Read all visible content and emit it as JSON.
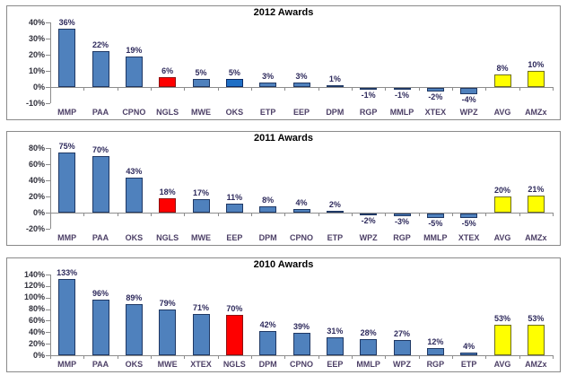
{
  "page": {
    "background": "#ffffff"
  },
  "colors": {
    "blue": {
      "fill": "#4f81bd",
      "border": "#1f3864"
    },
    "brightblue": {
      "fill": "#1f6fc5",
      "border": "#0b2a66"
    },
    "red": {
      "fill": "#fe0000",
      "border": "#8e1010"
    },
    "yellow": {
      "fill": "#ffff00",
      "border": "#6f6f1f"
    },
    "axis": "#8c8c8c",
    "value_label": "#2e2a5c",
    "category_label": "#4c3f66",
    "tick_label": "#2f2f3a",
    "title": "#000000",
    "panel_border": "#8a8a8a"
  },
  "chart_data": [
    {
      "type": "bar",
      "title": "2012 Awards",
      "ylim": [
        -10,
        40
      ],
      "yticks": [
        40,
        30,
        20,
        10,
        0,
        -10
      ],
      "ytick_labels": [
        "40%",
        "30%",
        "20%",
        "10%",
        "0%",
        "-10%"
      ],
      "grid": false,
      "legend": false,
      "categories": [
        "MMP",
        "PAA",
        "CPNO",
        "NGLS",
        "MWE",
        "OKS",
        "ETP",
        "EEP",
        "DPM",
        "RGP",
        "MMLP",
        "XTEX",
        "WPZ",
        "AVG",
        "AMZx"
      ],
      "values": [
        36,
        22,
        19,
        6,
        5,
        5,
        3,
        3,
        1,
        -1,
        -1,
        -2,
        -4,
        8,
        10
      ],
      "value_labels": [
        "36%",
        "22%",
        "19%",
        "6%",
        "5%",
        "5%",
        "3%",
        "3%",
        "1%",
        "-1%",
        "-1%",
        "-2%",
        "-4%",
        "8%",
        "10%"
      ],
      "bar_colors": [
        "blue",
        "blue",
        "blue",
        "red",
        "blue",
        "brightblue",
        "blue",
        "blue",
        "blue",
        "blue",
        "blue",
        "blue",
        "blue",
        "yellow",
        "yellow"
      ]
    },
    {
      "type": "bar",
      "title": "2011 Awards",
      "ylim": [
        -20,
        80
      ],
      "yticks": [
        80,
        60,
        40,
        20,
        0,
        -20
      ],
      "ytick_labels": [
        "80%",
        "60%",
        "40%",
        "20%",
        "0%",
        "-20%"
      ],
      "grid": false,
      "legend": false,
      "categories": [
        "MMP",
        "PAA",
        "OKS",
        "NGLS",
        "MWE",
        "EEP",
        "DPM",
        "CPNO",
        "ETP",
        "WPZ",
        "RGP",
        "MMLP",
        "XTEX",
        "AVG",
        "AMZx"
      ],
      "values": [
        75,
        70,
        43,
        18,
        17,
        11,
        8,
        4,
        2,
        -2,
        -3,
        -5,
        -5,
        20,
        21
      ],
      "value_labels": [
        "75%",
        "70%",
        "43%",
        "18%",
        "17%",
        "11%",
        "8%",
        "4%",
        "2%",
        "-2%",
        "-3%",
        "-5%",
        "-5%",
        "20%",
        "21%"
      ],
      "bar_colors": [
        "blue",
        "blue",
        "blue",
        "red",
        "blue",
        "blue",
        "blue",
        "blue",
        "blue",
        "blue",
        "blue",
        "blue",
        "blue",
        "yellow",
        "yellow"
      ]
    },
    {
      "type": "bar",
      "title": "2010 Awards",
      "ylim": [
        0,
        140
      ],
      "yticks": [
        140,
        120,
        100,
        80,
        60,
        40,
        20,
        0
      ],
      "ytick_labels": [
        "140%",
        "120%",
        "100%",
        "80%",
        "60%",
        "40%",
        "20%",
        "0%"
      ],
      "grid": false,
      "legend": false,
      "categories": [
        "MMP",
        "PAA",
        "OKS",
        "MWE",
        "XTEX",
        "NGLS",
        "DPM",
        "CPNO",
        "EEP",
        "MMLP",
        "WPZ",
        "RGP",
        "ETP",
        "AVG",
        "AMZx"
      ],
      "values": [
        133,
        96,
        89,
        79,
        71,
        70,
        42,
        39,
        31,
        28,
        27,
        12,
        4,
        53,
        53
      ],
      "value_labels": [
        "133%",
        "96%",
        "89%",
        "79%",
        "71%",
        "70%",
        "42%",
        "39%",
        "31%",
        "28%",
        "27%",
        "12%",
        "4%",
        "53%",
        "53%"
      ],
      "bar_colors": [
        "blue",
        "blue",
        "blue",
        "blue",
        "blue",
        "red",
        "blue",
        "blue",
        "blue",
        "blue",
        "blue",
        "blue",
        "blue",
        "yellow",
        "yellow"
      ]
    }
  ]
}
